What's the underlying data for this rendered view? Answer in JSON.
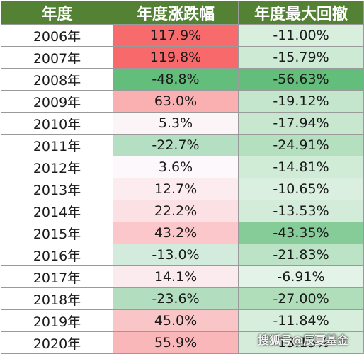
{
  "chart_data": {
    "type": "table",
    "columns": [
      "年度",
      "年度涨跌幅",
      "年度最大回撤"
    ],
    "rows": [
      {
        "year": "2006年",
        "change": "117.9%",
        "change_value": 117.9,
        "drawdown": "-11.00%",
        "drawdown_value": -11.0
      },
      {
        "year": "2007年",
        "change": "119.8%",
        "change_value": 119.8,
        "drawdown": "-15.79%",
        "drawdown_value": -15.79
      },
      {
        "year": "2008年",
        "change": "-48.8%",
        "change_value": -48.8,
        "drawdown": "-56.63%",
        "drawdown_value": -56.63
      },
      {
        "year": "2009年",
        "change": "63.0%",
        "change_value": 63.0,
        "drawdown": "-19.12%",
        "drawdown_value": -19.12
      },
      {
        "year": "2010年",
        "change": "5.3%",
        "change_value": 5.3,
        "drawdown": "-17.94%",
        "drawdown_value": -17.94
      },
      {
        "year": "2011年",
        "change": "-22.7%",
        "change_value": -22.7,
        "drawdown": "-24.91%",
        "drawdown_value": -24.91
      },
      {
        "year": "2012年",
        "change": "3.6%",
        "change_value": 3.6,
        "drawdown": "-14.81%",
        "drawdown_value": -14.81
      },
      {
        "year": "2013年",
        "change": "12.7%",
        "change_value": 12.7,
        "drawdown": "-10.65%",
        "drawdown_value": -10.65
      },
      {
        "year": "2014年",
        "change": "22.2%",
        "change_value": 22.2,
        "drawdown": "-13.53%",
        "drawdown_value": -13.53
      },
      {
        "year": "2015年",
        "change": "43.2%",
        "change_value": 43.2,
        "drawdown": "-43.35%",
        "drawdown_value": -43.35
      },
      {
        "year": "2016年",
        "change": "-13.0%",
        "change_value": -13.0,
        "drawdown": "-21.83%",
        "drawdown_value": -21.83
      },
      {
        "year": "2017年",
        "change": "14.1%",
        "change_value": 14.1,
        "drawdown": "-6.91%",
        "drawdown_value": -6.91
      },
      {
        "year": "2018年",
        "change": "-23.6%",
        "change_value": -23.6,
        "drawdown": "-27.00%",
        "drawdown_value": -27.0
      },
      {
        "year": "2019年",
        "change": "45.0%",
        "change_value": 45.0,
        "drawdown": "-11.84%",
        "drawdown_value": -11.84
      },
      {
        "year": "2020年",
        "change": "55.9%",
        "change_value": 55.9,
        "drawdown": "-13.15%",
        "drawdown_value": -13.15
      }
    ]
  },
  "colors": {
    "header_bg": "#548235",
    "header_text": "#ffffff",
    "positive_max": "#f8696b",
    "negative_max": "#63be7b",
    "neutral": "#fcfcff"
  },
  "watermark": "搜狐号@辰夏基金"
}
